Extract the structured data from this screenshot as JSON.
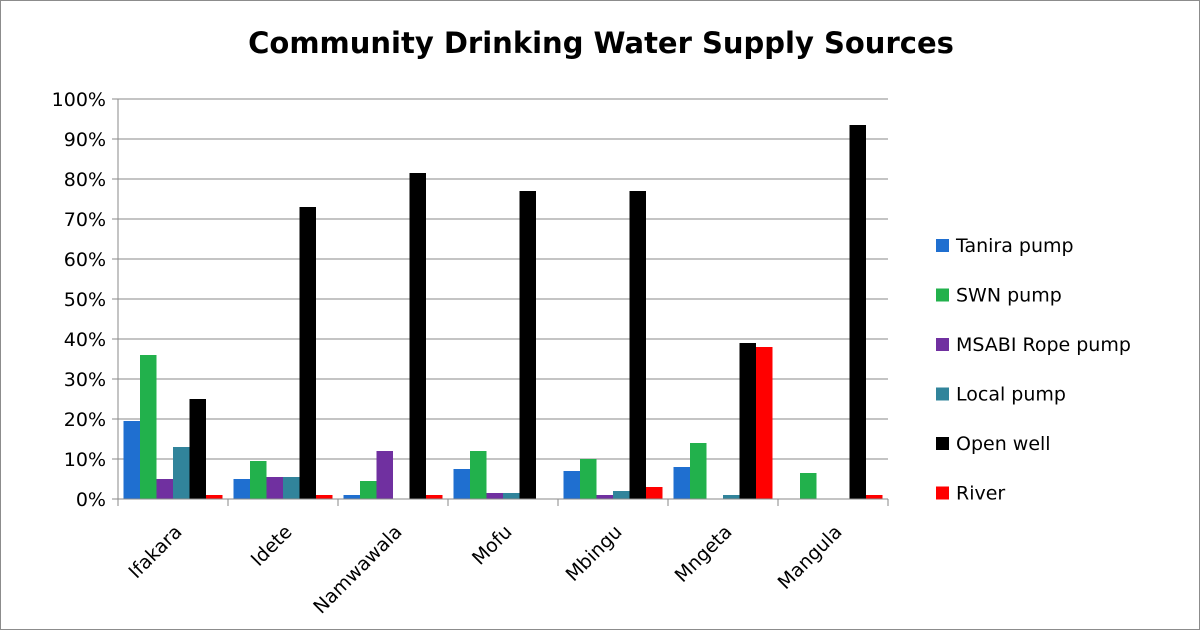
{
  "chart_data": {
    "type": "bar",
    "title": "Community Drinking Water Supply Sources",
    "xlabel": "",
    "ylabel": "",
    "ylim": [
      0,
      100
    ],
    "yticks": [
      "0%",
      "10%",
      "20%",
      "30%",
      "40%",
      "50%",
      "60%",
      "70%",
      "80%",
      "90%",
      "100%"
    ],
    "grid": true,
    "legend_position": "right",
    "categories": [
      "Ifakara",
      "Idete",
      "Namwawala",
      "Mofu",
      "Mbingu",
      "Mngeta",
      "Mangula"
    ],
    "series": [
      {
        "name": "Tanira pump",
        "color": "#1f6fd0",
        "values": [
          19.5,
          5,
          1,
          7.5,
          7,
          8,
          0
        ]
      },
      {
        "name": "SWN pump",
        "color": "#22b14c",
        "values": [
          36,
          9.5,
          4.5,
          12,
          10,
          14,
          6.5
        ]
      },
      {
        "name": "MSABI Rope pump",
        "color": "#7030a0",
        "values": [
          5,
          5.5,
          12,
          1.5,
          1,
          0,
          0
        ]
      },
      {
        "name": "Local pump",
        "color": "#31849b",
        "values": [
          13,
          5.5,
          0,
          1.5,
          2,
          1,
          0
        ]
      },
      {
        "name": "Open well",
        "color": "#000000",
        "values": [
          25,
          73,
          81.5,
          77,
          77,
          39,
          93.5
        ]
      },
      {
        "name": "River",
        "color": "#ff0000",
        "values": [
          1,
          1,
          1,
          0,
          3,
          38,
          1
        ]
      }
    ]
  }
}
